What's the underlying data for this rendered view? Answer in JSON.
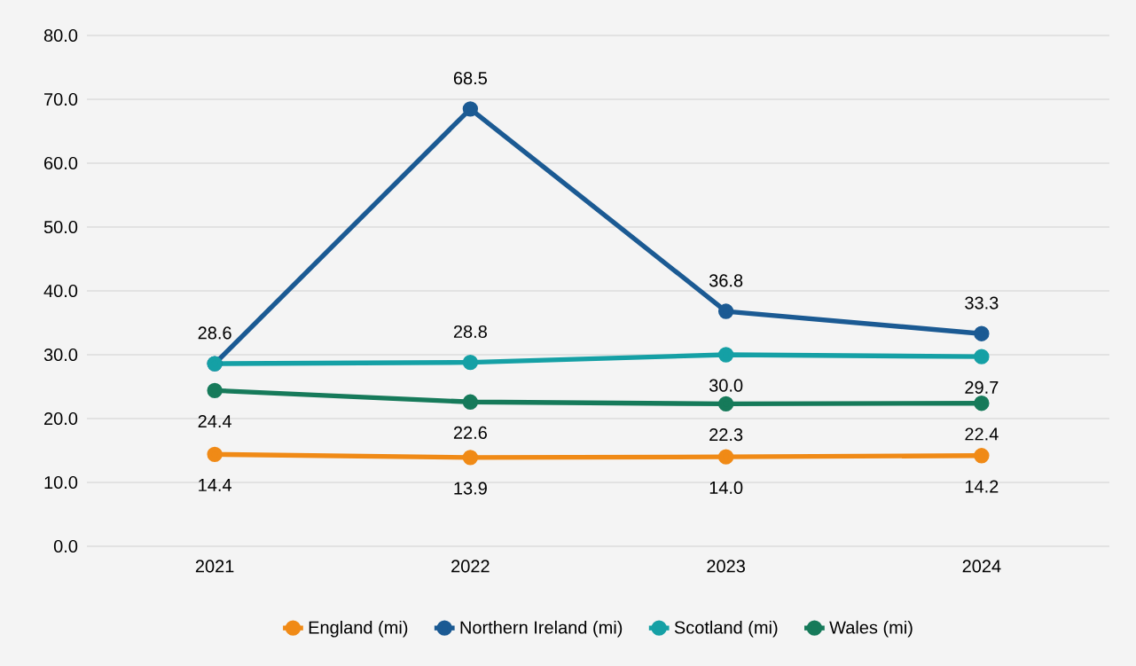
{
  "chart_data": {
    "type": "line",
    "categories": [
      "2021",
      "2022",
      "2023",
      "2024"
    ],
    "series": [
      {
        "name": "England (mi)",
        "color": "#f08a16",
        "values": [
          14.4,
          13.9,
          14.0,
          14.2
        ],
        "value_labels": [
          "14.4",
          "13.9",
          "14.0",
          "14.2"
        ]
      },
      {
        "name": "Northern Ireland (mi)",
        "color": "#1b5a93",
        "values": [
          28.6,
          68.5,
          36.8,
          33.3
        ],
        "value_labels": [
          "28.6",
          "68.5",
          "36.8",
          "33.3"
        ]
      },
      {
        "name": "Scotland (mi)",
        "color": "#15a0a5",
        "values": [
          28.6,
          28.8,
          30.0,
          29.7
        ],
        "value_labels": [
          null,
          "28.8",
          "30.0",
          "29.7"
        ]
      },
      {
        "name": "Wales (mi)",
        "color": "#167a5a",
        "values": [
          24.4,
          22.6,
          22.3,
          22.4
        ],
        "value_labels": [
          "24.4",
          "22.6",
          "22.3",
          "22.4"
        ]
      }
    ],
    "ylim": [
      0,
      80
    ],
    "yticks": [
      {
        "value": 0,
        "label": "0.0"
      },
      {
        "value": 10,
        "label": "10.0"
      },
      {
        "value": 20,
        "label": "20.0"
      },
      {
        "value": 30,
        "label": "30.0"
      },
      {
        "value": 40,
        "label": "40.0"
      },
      {
        "value": 50,
        "label": "50.0"
      },
      {
        "value": 60,
        "label": "60.0"
      },
      {
        "value": 70,
        "label": "70.0"
      },
      {
        "value": 80,
        "label": "80.0"
      }
    ],
    "grid": "y",
    "legend": "bottom",
    "marker": "circle",
    "line_style": "solid"
  }
}
